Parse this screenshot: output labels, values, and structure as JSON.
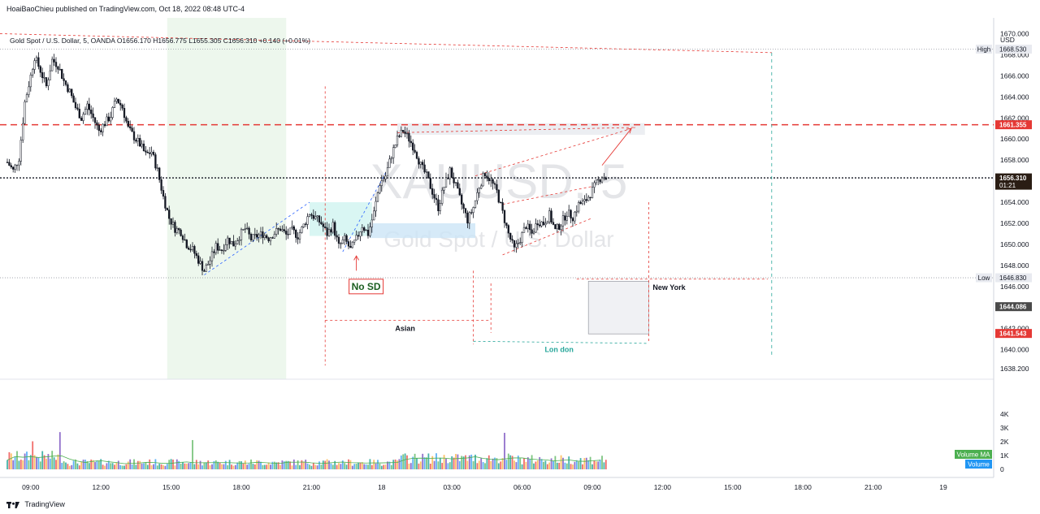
{
  "header": {
    "publish_line": "HoaiBaoChieu published on TradingView.com, Oct 18, 2022 08:48 UTC-4"
  },
  "legend": {
    "symbol": "Gold Spot / U.S. Dollar, 5, OANDA",
    "open": "O1656.170",
    "high": "H1656.775",
    "low": "L1655.305",
    "close": "C1656.310",
    "change": "+0.140 (+0.01%)"
  },
  "watermark": {
    "ticker": "XAUUSD, 5",
    "name": "Gold Spot / U.S. Dollar"
  },
  "footer": {
    "brand": "TradingView"
  },
  "colors": {
    "up": "#26a69a",
    "down": "#ef5350",
    "candle": "#131722",
    "red_line": "#e53935",
    "session_green": "#e8f5e9",
    "box_cyan": "#ccf3ef",
    "box_blue": "#cce5f6"
  },
  "chart_data": {
    "type": "candlestick",
    "price_axis": {
      "currency": "USD",
      "ylim": [
        1637.2,
        1671.5
      ],
      "ticks": [
        "1670.000",
        "1668.000",
        "1666.000",
        "1664.000",
        "1662.000",
        "1660.000",
        "1658.000",
        "1656.000",
        "1654.000",
        "1652.000",
        "1650.000",
        "1648.000",
        "1646.000",
        "1644.000",
        "1642.000",
        "1640.000",
        "1638.200"
      ],
      "tick_values": [
        1670,
        1668,
        1666,
        1664,
        1662,
        1660,
        1658,
        1656,
        1654,
        1652,
        1650,
        1648,
        1646,
        1644,
        1642,
        1640,
        1638.2
      ]
    },
    "volume_axis": {
      "ticks": [
        "4K",
        "3K",
        "2K",
        "1K",
        "0"
      ],
      "tick_values": [
        4000,
        3000,
        2000,
        1000,
        0
      ]
    },
    "time_axis": {
      "labels": [
        "09:00",
        "12:00",
        "15:00",
        "18:00",
        "21:00",
        "18",
        "03:00",
        "06:00",
        "09:00",
        "12:00",
        "15:00",
        "18:00",
        "21:00",
        "19"
      ],
      "bar_index": [
        12,
        48,
        84,
        120,
        156,
        192,
        228,
        264,
        300,
        336,
        372,
        408,
        444,
        480
      ]
    },
    "price_labels": [
      {
        "label": "High",
        "value": "1668.530",
        "y": 1668.53,
        "style": "neutral"
      },
      {
        "label": "",
        "value": "1661.355",
        "y": 1661.355,
        "style": "red"
      },
      {
        "label": "",
        "value": "1656.310",
        "sub": "01:21",
        "y": 1656.31,
        "style": "dark"
      },
      {
        "label": "Low",
        "value": "1646.830",
        "y": 1646.83,
        "style": "neutral"
      },
      {
        "label": "",
        "value": "1644.086",
        "y": 1644.086,
        "style": "grey"
      },
      {
        "label": "",
        "value": "1641.543",
        "y": 1641.543,
        "style": "red"
      }
    ],
    "indicator_labels": {
      "volume_ma": "Volume MA",
      "volume": "Volume"
    },
    "annotations": {
      "no_sd": "No SD",
      "asian": "Asian",
      "london": "Lon don",
      "new_york": "New York"
    },
    "close_series": [
      {
        "i": 0,
        "c": 1657.8
      },
      {
        "i": 3,
        "c": 1657.0
      },
      {
        "i": 6,
        "c": 1658.2
      },
      {
        "i": 9,
        "c": 1663.5
      },
      {
        "i": 12,
        "c": 1666.0
      },
      {
        "i": 14,
        "c": 1667.8
      },
      {
        "i": 17,
        "c": 1666.5
      },
      {
        "i": 20,
        "c": 1665.0
      },
      {
        "i": 23,
        "c": 1667.5
      },
      {
        "i": 26,
        "c": 1667.0
      },
      {
        "i": 29,
        "c": 1665.5
      },
      {
        "i": 32,
        "c": 1664.5
      },
      {
        "i": 35,
        "c": 1663.0
      },
      {
        "i": 38,
        "c": 1662.0
      },
      {
        "i": 41,
        "c": 1663.2
      },
      {
        "i": 44,
        "c": 1662.0
      },
      {
        "i": 47,
        "c": 1660.8
      },
      {
        "i": 50,
        "c": 1661.5
      },
      {
        "i": 53,
        "c": 1662.2
      },
      {
        "i": 56,
        "c": 1663.8
      },
      {
        "i": 59,
        "c": 1663.0
      },
      {
        "i": 62,
        "c": 1661.0
      },
      {
        "i": 65,
        "c": 1660.2
      },
      {
        "i": 68,
        "c": 1659.5
      },
      {
        "i": 71,
        "c": 1658.5
      },
      {
        "i": 74,
        "c": 1658.8
      },
      {
        "i": 77,
        "c": 1657.0
      },
      {
        "i": 80,
        "c": 1654.5
      },
      {
        "i": 83,
        "c": 1652.5
      },
      {
        "i": 86,
        "c": 1651.5
      },
      {
        "i": 89,
        "c": 1651.2
      },
      {
        "i": 92,
        "c": 1650.0
      },
      {
        "i": 95,
        "c": 1649.5
      },
      {
        "i": 98,
        "c": 1648.5
      },
      {
        "i": 101,
        "c": 1647.5
      },
      {
        "i": 104,
        "c": 1648.5
      },
      {
        "i": 107,
        "c": 1649.8
      },
      {
        "i": 110,
        "c": 1649.5
      },
      {
        "i": 113,
        "c": 1650.5
      },
      {
        "i": 116,
        "c": 1650.0
      },
      {
        "i": 119,
        "c": 1650.8
      },
      {
        "i": 122,
        "c": 1651.5
      },
      {
        "i": 125,
        "c": 1650.5
      },
      {
        "i": 128,
        "c": 1650.8
      },
      {
        "i": 131,
        "c": 1651.0
      },
      {
        "i": 134,
        "c": 1650.6
      },
      {
        "i": 137,
        "c": 1651.1
      },
      {
        "i": 140,
        "c": 1651.5
      },
      {
        "i": 143,
        "c": 1650.9
      },
      {
        "i": 146,
        "c": 1651.3
      },
      {
        "i": 149,
        "c": 1650.8
      },
      {
        "i": 152,
        "c": 1651.8
      },
      {
        "i": 155,
        "c": 1653.0
      },
      {
        "i": 158,
        "c": 1652.5
      },
      {
        "i": 161,
        "c": 1652.0
      },
      {
        "i": 164,
        "c": 1651.0
      },
      {
        "i": 167,
        "c": 1651.8
      },
      {
        "i": 170,
        "c": 1649.8
      },
      {
        "i": 173,
        "c": 1650.5
      },
      {
        "i": 176,
        "c": 1649.5
      },
      {
        "i": 179,
        "c": 1650.5
      },
      {
        "i": 182,
        "c": 1651.8
      },
      {
        "i": 185,
        "c": 1651.0
      },
      {
        "i": 188,
        "c": 1653.0
      },
      {
        "i": 191,
        "c": 1655.8
      },
      {
        "i": 194,
        "c": 1656.5
      },
      {
        "i": 197,
        "c": 1658.5
      },
      {
        "i": 200,
        "c": 1660.0
      },
      {
        "i": 203,
        "c": 1660.8
      },
      {
        "i": 206,
        "c": 1660.0
      },
      {
        "i": 209,
        "c": 1659.0
      },
      {
        "i": 212,
        "c": 1657.5
      },
      {
        "i": 215,
        "c": 1656.5
      },
      {
        "i": 218,
        "c": 1655.0
      },
      {
        "i": 221,
        "c": 1653.5
      },
      {
        "i": 224,
        "c": 1655.5
      },
      {
        "i": 227,
        "c": 1657.0
      },
      {
        "i": 230,
        "c": 1655.5
      },
      {
        "i": 233,
        "c": 1653.8
      },
      {
        "i": 236,
        "c": 1652.3
      },
      {
        "i": 239,
        "c": 1653.5
      },
      {
        "i": 242,
        "c": 1655.5
      },
      {
        "i": 245,
        "c": 1656.8
      },
      {
        "i": 248,
        "c": 1656.0
      },
      {
        "i": 251,
        "c": 1655.0
      },
      {
        "i": 254,
        "c": 1653.0
      },
      {
        "i": 257,
        "c": 1651.0
      },
      {
        "i": 260,
        "c": 1649.5
      },
      {
        "i": 263,
        "c": 1650.5
      },
      {
        "i": 266,
        "c": 1651.8
      },
      {
        "i": 269,
        "c": 1651.0
      },
      {
        "i": 272,
        "c": 1652.2
      },
      {
        "i": 275,
        "c": 1652.0
      },
      {
        "i": 278,
        "c": 1652.8
      },
      {
        "i": 281,
        "c": 1651.3
      },
      {
        "i": 284,
        "c": 1652.0
      },
      {
        "i": 287,
        "c": 1653.0
      },
      {
        "i": 290,
        "c": 1652.6
      },
      {
        "i": 293,
        "c": 1653.8
      },
      {
        "i": 296,
        "c": 1654.0
      },
      {
        "i": 299,
        "c": 1654.8
      },
      {
        "i": 302,
        "c": 1655.8
      },
      {
        "i": 305,
        "c": 1656.5
      },
      {
        "i": 307,
        "c": 1656.3
      }
    ]
  }
}
